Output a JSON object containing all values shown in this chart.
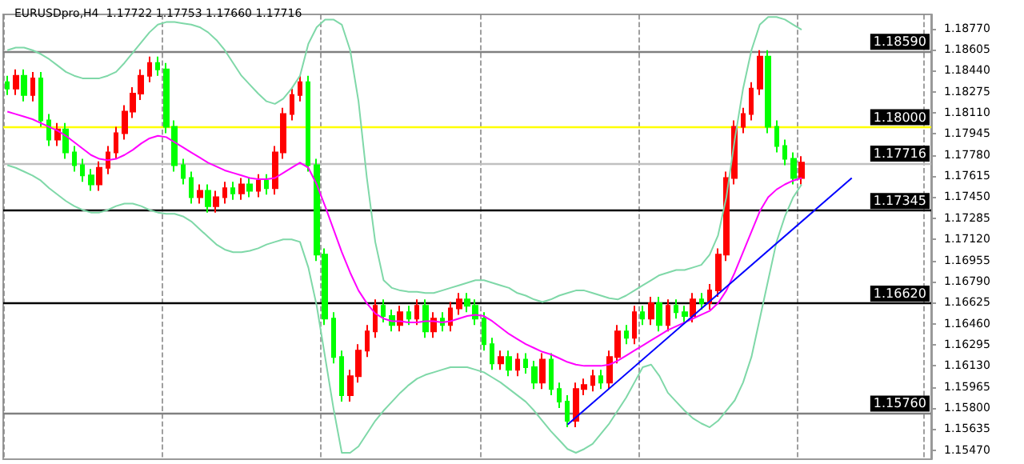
{
  "chart_data": {
    "type": "candlestick",
    "title": "EURUSDpro,H4  1.17722 1.17753 1.17660 1.17716",
    "categories": [
      null,
      null,
      null,
      null,
      null,
      null,
      null,
      null,
      null,
      null,
      null,
      null,
      null,
      null,
      null,
      null,
      null,
      null,
      null,
      null,
      null,
      null,
      null,
      null,
      null,
      null,
      null,
      null,
      null,
      null,
      null,
      null,
      null,
      null,
      null,
      null,
      null,
      null,
      null,
      null,
      null,
      null,
      null,
      null,
      null,
      null,
      null,
      null,
      null,
      null,
      null,
      null,
      null,
      null,
      null,
      null,
      null,
      null,
      null,
      null,
      null,
      null,
      null,
      null,
      null,
      null,
      null,
      null,
      null,
      null,
      null,
      null,
      null,
      null,
      null,
      null,
      null,
      null,
      null,
      null,
      null,
      null,
      null,
      null,
      null,
      null,
      null,
      null,
      null,
      null,
      null,
      null,
      null,
      null,
      null,
      null,
      null,
      null,
      null,
      null,
      null,
      null,
      null,
      null,
      null,
      null,
      null,
      null,
      null,
      null,
      null
    ],
    "colors": [
      "#00ff00",
      "#ff0000",
      "#00ff00",
      "#ff0000",
      "#00ff00",
      "#00ff00",
      "#ff0000",
      "#00ff00",
      "#00ff00",
      "#00ff00",
      "#00ff00",
      "#ff0000",
      "#ff0000",
      "#ff0000",
      "#ff0000",
      "#ff0000",
      "#ff0000",
      "#ff0000",
      "#00ff00",
      "#00ff00",
      "#00ff00",
      "#00ff00",
      "#00ff00",
      "#ff0000",
      "#00ff00",
      "#ff0000",
      "#ff0000",
      "#00ff00",
      "#ff0000",
      "#00ff00",
      "#ff0000",
      "#00ff00",
      "#ff0000",
      "#ff0000",
      "#ff0000",
      "#ff0000",
      "#00ff00",
      "#00ff00",
      "#00ff00",
      "#00ff00",
      "#00ff00",
      "#ff0000",
      "#ff0000",
      "#ff0000",
      "#ff0000",
      "#00ff00",
      "#00ff00",
      "#ff0000",
      "#00ff00",
      "#ff0000",
      "#00ff00",
      "#ff0000",
      "#00ff00",
      "#ff0000",
      "#ff0000",
      "#00ff00",
      "#00ff00",
      "#00ff00",
      "#00ff00",
      "#ff0000",
      "#00ff00",
      "#ff0000",
      "#00ff00",
      "#00ff00",
      "#ff0000",
      "#00ff00",
      "#00ff00",
      "#00ff00",
      "#ff0000",
      "#ff0000",
      "#ff0000",
      "#00ff00",
      "#ff0000",
      "#ff0000",
      "#00ff00",
      "#ff0000",
      "#00ff00",
      "#ff0000",
      "#00ff00",
      "#ff0000",
      "#00ff00",
      "#00ff00",
      "#ff0000",
      "#00ff00",
      "#ff0000",
      "#ff0000",
      "#ff0000",
      "#ff0000",
      "#ff0000",
      "#ff0000",
      "#ff0000",
      "#00ff00",
      "#00ff00",
      "#00ff00",
      "#00ff00",
      "#ff0000",
      null,
      null,
      null,
      null,
      null,
      null,
      null,
      null,
      null,
      null,
      null,
      null,
      null,
      null,
      null
    ],
    "ohlc": [
      [
        1.1835,
        1.184,
        1.1825,
        1.183
      ],
      [
        1.183,
        1.1845,
        1.1825,
        1.184
      ],
      [
        1.184,
        1.1845,
        1.182,
        1.1825
      ],
      [
        1.1825,
        1.1843,
        1.182,
        1.1838
      ],
      [
        1.1838,
        1.1843,
        1.18,
        1.1805
      ],
      [
        1.1805,
        1.181,
        1.1785,
        1.179
      ],
      [
        1.179,
        1.1803,
        1.1785,
        1.1798
      ],
      [
        1.1798,
        1.1803,
        1.1775,
        1.178
      ],
      [
        1.178,
        1.1785,
        1.1765,
        1.177
      ],
      [
        1.177,
        1.1775,
        1.1757,
        1.1762
      ],
      [
        1.1762,
        1.1767,
        1.175,
        1.1755
      ],
      [
        1.1755,
        1.1773,
        1.175,
        1.1768
      ],
      [
        1.1768,
        1.1785,
        1.1763,
        1.178
      ],
      [
        1.178,
        1.18,
        1.1775,
        1.1795
      ],
      [
        1.1795,
        1.1817,
        1.179,
        1.1812
      ],
      [
        1.1812,
        1.1831,
        1.1807,
        1.1826
      ],
      [
        1.1826,
        1.1845,
        1.1821,
        1.184
      ],
      [
        1.184,
        1.1855,
        1.1835,
        1.185
      ],
      [
        1.185,
        1.1855,
        1.184,
        1.1845
      ],
      [
        1.1845,
        1.185,
        1.1795,
        1.18
      ],
      [
        1.18,
        1.1805,
        1.1765,
        1.177
      ],
      [
        1.177,
        1.1775,
        1.1755,
        1.176
      ],
      [
        1.176,
        1.1765,
        1.174,
        1.1745
      ],
      [
        1.1745,
        1.1755,
        1.174,
        1.175
      ],
      [
        1.175,
        1.1755,
        1.1733,
        1.1738
      ],
      [
        1.1738,
        1.175,
        1.1733,
        1.1745
      ],
      [
        1.1745,
        1.1757,
        1.174,
        1.1752
      ],
      [
        1.1752,
        1.1757,
        1.1743,
        1.1748
      ],
      [
        1.1748,
        1.176,
        1.1743,
        1.1755
      ],
      [
        1.1755,
        1.176,
        1.1745,
        1.175
      ],
      [
        1.175,
        1.1763,
        1.1745,
        1.1758
      ],
      [
        1.1758,
        1.1763,
        1.1747,
        1.1752
      ],
      [
        1.1752,
        1.1785,
        1.1747,
        1.178
      ],
      [
        1.178,
        1.1815,
        1.1775,
        1.181
      ],
      [
        1.181,
        1.183,
        1.1805,
        1.1825
      ],
      [
        1.1825,
        1.184,
        1.182,
        1.1835
      ],
      [
        1.1835,
        1.184,
        1.1765,
        1.177
      ],
      [
        1.177,
        1.1775,
        1.1695,
        1.17
      ],
      [
        1.17,
        1.1705,
        1.1645,
        1.165
      ],
      [
        1.165,
        1.1655,
        1.1615,
        1.162
      ],
      [
        1.162,
        1.1625,
        1.1585,
        1.159
      ],
      [
        1.159,
        1.161,
        1.1585,
        1.1605
      ],
      [
        1.1605,
        1.163,
        1.16,
        1.1625
      ],
      [
        1.1625,
        1.1645,
        1.162,
        1.164
      ],
      [
        1.164,
        1.1665,
        1.1635,
        1.166
      ],
      [
        1.166,
        1.1665,
        1.1647,
        1.1652
      ],
      [
        1.1652,
        1.1657,
        1.164,
        1.1645
      ],
      [
        1.1645,
        1.166,
        1.164,
        1.1655
      ],
      [
        1.1655,
        1.166,
        1.1645,
        1.165
      ],
      [
        1.165,
        1.1665,
        1.1645,
        1.166
      ],
      [
        1.166,
        1.1665,
        1.1635,
        1.164
      ],
      [
        1.164,
        1.1655,
        1.1635,
        1.165
      ],
      [
        1.165,
        1.1655,
        1.164,
        1.1645
      ],
      [
        1.1645,
        1.1663,
        1.164,
        1.1658
      ],
      [
        1.1658,
        1.167,
        1.1653,
        1.1665
      ],
      [
        1.1665,
        1.167,
        1.1655,
        1.166
      ],
      [
        1.166,
        1.1665,
        1.1645,
        1.165
      ],
      [
        1.165,
        1.1655,
        1.1625,
        1.163
      ],
      [
        1.163,
        1.1635,
        1.161,
        1.1615
      ],
      [
        1.1615,
        1.1625,
        1.161,
        1.162
      ],
      [
        1.162,
        1.1625,
        1.1605,
        1.161
      ],
      [
        1.161,
        1.1623,
        1.1605,
        1.1618
      ],
      [
        1.1618,
        1.1623,
        1.1607,
        1.1612
      ],
      [
        1.1612,
        1.1617,
        1.1595,
        1.16
      ],
      [
        1.16,
        1.1623,
        1.1595,
        1.1618
      ],
      [
        1.1618,
        1.1623,
        1.159,
        1.1595
      ],
      [
        1.1595,
        1.16,
        1.158,
        1.1585
      ],
      [
        1.1585,
        1.159,
        1.1565,
        1.157
      ],
      [
        1.157,
        1.16,
        1.1565,
        1.1595
      ],
      [
        1.1595,
        1.1603,
        1.159,
        1.1598
      ],
      [
        1.1598,
        1.161,
        1.1593,
        1.1605
      ],
      [
        1.1605,
        1.161,
        1.1595,
        1.16
      ],
      [
        1.16,
        1.1625,
        1.1595,
        1.162
      ],
      [
        1.162,
        1.1645,
        1.1615,
        1.164
      ],
      [
        1.164,
        1.1645,
        1.163,
        1.1635
      ],
      [
        1.1635,
        1.166,
        1.163,
        1.1655
      ],
      [
        1.1655,
        1.166,
        1.1645,
        1.165
      ],
      [
        1.165,
        1.1667,
        1.1645,
        1.1662
      ],
      [
        1.1662,
        1.1667,
        1.164,
        1.1645
      ],
      [
        1.1645,
        1.1665,
        1.164,
        1.166
      ],
      [
        1.166,
        1.1665,
        1.165,
        1.1655
      ],
      [
        1.1655,
        1.166,
        1.1647,
        1.1652
      ],
      [
        1.1652,
        1.167,
        1.1647,
        1.1665
      ],
      [
        1.1665,
        1.167,
        1.1657,
        1.1662
      ],
      [
        1.1662,
        1.1677,
        1.1657,
        1.1672
      ],
      [
        1.1672,
        1.1705,
        1.1667,
        1.17
      ],
      [
        1.17,
        1.1765,
        1.1695,
        1.176
      ],
      [
        1.176,
        1.1805,
        1.1755,
        1.18
      ],
      [
        1.18,
        1.1815,
        1.1795,
        1.181
      ],
      [
        1.181,
        1.1835,
        1.1805,
        1.183
      ],
      [
        1.183,
        1.186,
        1.1825,
        1.1855
      ],
      [
        1.1855,
        1.186,
        1.1795,
        1.18
      ],
      [
        1.18,
        1.1805,
        1.178,
        1.1785
      ],
      [
        1.1785,
        1.179,
        1.177,
        1.1775
      ],
      [
        1.1775,
        1.178,
        1.1755,
        1.176
      ],
      [
        1.176,
        1.1777,
        1.1755,
        1.1772
      ],
      null,
      null,
      null,
      null,
      null,
      null,
      null,
      null,
      null,
      null,
      null,
      null,
      null,
      null,
      null
    ],
    "series": [
      {
        "type": "line",
        "color": "#ff00ff",
        "values": [
          1.1812,
          1.181,
          1.1808,
          1.1806,
          1.1803,
          1.18,
          1.1797,
          1.1793,
          1.1788,
          1.1783,
          1.1778,
          1.1775,
          1.1774,
          1.1775,
          1.1778,
          1.1782,
          1.1787,
          1.1791,
          1.1793,
          1.1792,
          1.1788,
          1.1784,
          1.178,
          1.1776,
          1.1772,
          1.1769,
          1.1766,
          1.1764,
          1.1762,
          1.176,
          1.1759,
          1.1759,
          1.176,
          1.1764,
          1.1768,
          1.1772,
          1.1768,
          1.1755,
          1.1738,
          1.172,
          1.1702,
          1.1686,
          1.1672,
          1.1662,
          1.1654,
          1.165,
          1.1648,
          1.1648,
          1.1647,
          1.1647,
          1.1648,
          1.1648,
          1.1647,
          1.1648,
          1.165,
          1.1652,
          1.1653,
          1.1652,
          1.1648,
          1.1643,
          1.1638,
          1.1634,
          1.163,
          1.1627,
          1.1624,
          1.1622,
          1.1619,
          1.1616,
          1.1614,
          1.1613,
          1.1613,
          1.1613,
          1.1614,
          1.1617,
          1.1621,
          1.1625,
          1.1629,
          1.1633,
          1.1637,
          1.1641,
          1.1644,
          1.1647,
          1.165,
          1.1653,
          1.1656,
          1.1662,
          1.1672,
          1.1686,
          1.1702,
          1.1718,
          1.1734,
          1.1745,
          1.1751,
          1.1755,
          1.1758,
          1.176,
          null,
          null,
          null,
          null,
          null,
          null,
          null,
          null,
          null,
          null,
          null,
          null,
          null,
          null,
          null
        ]
      },
      {
        "type": "line",
        "color": "#7fd8a8",
        "values": [
          1.186,
          1.1862,
          1.1862,
          1.186,
          1.1857,
          1.1853,
          1.1848,
          1.1843,
          1.184,
          1.1838,
          1.1838,
          1.1838,
          1.184,
          1.1843,
          1.185,
          1.1858,
          1.1866,
          1.1874,
          1.188,
          1.1882,
          1.1882,
          1.1881,
          1.188,
          1.1878,
          1.1874,
          1.1868,
          1.186,
          1.185,
          1.184,
          1.1833,
          1.1826,
          1.182,
          1.1818,
          1.1822,
          1.183,
          1.184,
          1.1865,
          1.1878,
          1.1884,
          1.1884,
          1.188,
          1.186,
          1.182,
          1.176,
          1.171,
          1.168,
          1.1674,
          1.1672,
          1.1671,
          1.1671,
          1.167,
          1.167,
          1.1672,
          1.1674,
          1.1676,
          1.1678,
          1.168,
          1.168,
          1.1678,
          1.1676,
          1.1674,
          1.167,
          1.1668,
          1.1665,
          1.1663,
          1.1665,
          1.1668,
          1.167,
          1.1672,
          1.1672,
          1.167,
          1.1668,
          1.1666,
          1.1665,
          1.1668,
          1.1672,
          1.1676,
          1.168,
          1.1684,
          1.1686,
          1.1688,
          1.1688,
          1.169,
          1.1692,
          1.17,
          1.1715,
          1.1745,
          1.179,
          1.183,
          1.186,
          1.188,
          1.1886,
          1.1886,
          1.1884,
          1.188,
          1.1876,
          null,
          null,
          null,
          null,
          null,
          null,
          null,
          null,
          null,
          null,
          null,
          null,
          null,
          null,
          null
        ]
      },
      {
        "type": "line",
        "color": "#7fd8a8",
        "values": [
          1.177,
          1.1768,
          1.1765,
          1.1762,
          1.1758,
          1.1752,
          1.1747,
          1.1742,
          1.1738,
          1.1735,
          1.1733,
          1.1733,
          1.1735,
          1.1738,
          1.174,
          1.174,
          1.1738,
          1.1735,
          1.1733,
          1.1732,
          1.1732,
          1.173,
          1.1726,
          1.172,
          1.1714,
          1.1708,
          1.1704,
          1.1702,
          1.1702,
          1.1703,
          1.1705,
          1.1708,
          1.171,
          1.1712,
          1.1712,
          1.171,
          1.169,
          1.166,
          1.162,
          1.158,
          1.1545,
          1.1545,
          1.155,
          1.156,
          1.157,
          1.1578,
          1.1585,
          1.1592,
          1.1598,
          1.1603,
          1.1606,
          1.1608,
          1.161,
          1.1612,
          1.1612,
          1.1612,
          1.161,
          1.1608,
          1.1604,
          1.16,
          1.1595,
          1.159,
          1.1585,
          1.1578,
          1.157,
          1.1562,
          1.1555,
          1.1548,
          1.1545,
          1.1548,
          1.1552,
          1.156,
          1.1568,
          1.1578,
          1.1588,
          1.16,
          1.1612,
          1.1614,
          1.1605,
          1.1592,
          1.1585,
          1.1578,
          1.1572,
          1.1568,
          1.1565,
          1.157,
          1.1578,
          1.1586,
          1.16,
          1.162,
          1.165,
          1.168,
          1.171,
          1.173,
          1.1745,
          1.1755,
          null,
          null,
          null,
          null,
          null,
          null,
          null,
          null,
          null,
          null,
          null,
          null,
          null,
          null,
          null
        ]
      },
      {
        "type": "line",
        "color": "#0000ff",
        "values": [
          null,
          null,
          null,
          null,
          null,
          null,
          null,
          null,
          null,
          null,
          null,
          null,
          null,
          null,
          null,
          null,
          null,
          null,
          null,
          null,
          null,
          null,
          null,
          null,
          null,
          null,
          null,
          null,
          null,
          null,
          null,
          null,
          null,
          null,
          null,
          null,
          null,
          null,
          null,
          null,
          null,
          null,
          null,
          null,
          null,
          null,
          null,
          null,
          null,
          null,
          null,
          null,
          null,
          null,
          null,
          null,
          null,
          null,
          null,
          null,
          null,
          null,
          null,
          null,
          null,
          null,
          null,
          1.1567,
          null,
          null,
          null,
          null,
          null,
          null,
          null,
          null,
          null,
          null,
          null,
          null,
          null,
          null,
          null,
          null,
          null,
          null,
          null,
          null,
          null,
          null,
          null,
          null,
          null,
          null,
          null,
          null,
          null,
          null,
          null,
          null,
          null,
          1.176,
          null,
          null,
          null,
          null,
          null,
          null,
          null,
          null,
          null
        ]
      }
    ],
    "ylim": [
      1.154,
      1.1888
    ],
    "yticks": [
      {
        "value": 1.1877,
        "label": "1.18770"
      },
      {
        "value": 1.18605,
        "label": "1.18605"
      },
      {
        "value": 1.1844,
        "label": "1.18440"
      },
      {
        "value": 1.18275,
        "label": "1.18275"
      },
      {
        "value": 1.1811,
        "label": "1.18110"
      },
      {
        "value": 1.17945,
        "label": "1.17945"
      },
      {
        "value": 1.1778,
        "label": "1.17780"
      },
      {
        "value": 1.17615,
        "label": "1.17615"
      },
      {
        "value": 1.1745,
        "label": "1.17450"
      },
      {
        "value": 1.17285,
        "label": "1.17285"
      },
      {
        "value": 1.1712,
        "label": "1.17120"
      },
      {
        "value": 1.16955,
        "label": "1.16955"
      },
      {
        "value": 1.1679,
        "label": "1.16790"
      },
      {
        "value": 1.16625,
        "label": "1.16625"
      },
      {
        "value": 1.1646,
        "label": "1.16460"
      },
      {
        "value": 1.16295,
        "label": "1.16295"
      },
      {
        "value": 1.1613,
        "label": "1.16130"
      },
      {
        "value": 1.15965,
        "label": "1.15965"
      },
      {
        "value": 1.158,
        "label": "1.15800"
      },
      {
        "value": 1.15635,
        "label": "1.15635"
      },
      {
        "value": 1.1547,
        "label": "1.15470"
      }
    ],
    "ref_lines": [
      {
        "axis": "y",
        "value": 1.1859,
        "label": "1.18590",
        "color": "#808080"
      },
      {
        "axis": "y",
        "value": 1.18,
        "label": "1.18000",
        "color": "#ffff00"
      },
      {
        "axis": "y",
        "value": 1.17716,
        "label": "1.17716",
        "color": "#c0c0c0"
      },
      {
        "axis": "y",
        "value": 1.17345,
        "label": "1.17345",
        "color": "#000000"
      },
      {
        "axis": "y",
        "value": 1.1662,
        "label": "1.16620",
        "color": "#000000"
      },
      {
        "axis": "y",
        "value": 1.1576,
        "label": "1.15760",
        "color": "#808080"
      }
    ],
    "grid": "x"
  }
}
